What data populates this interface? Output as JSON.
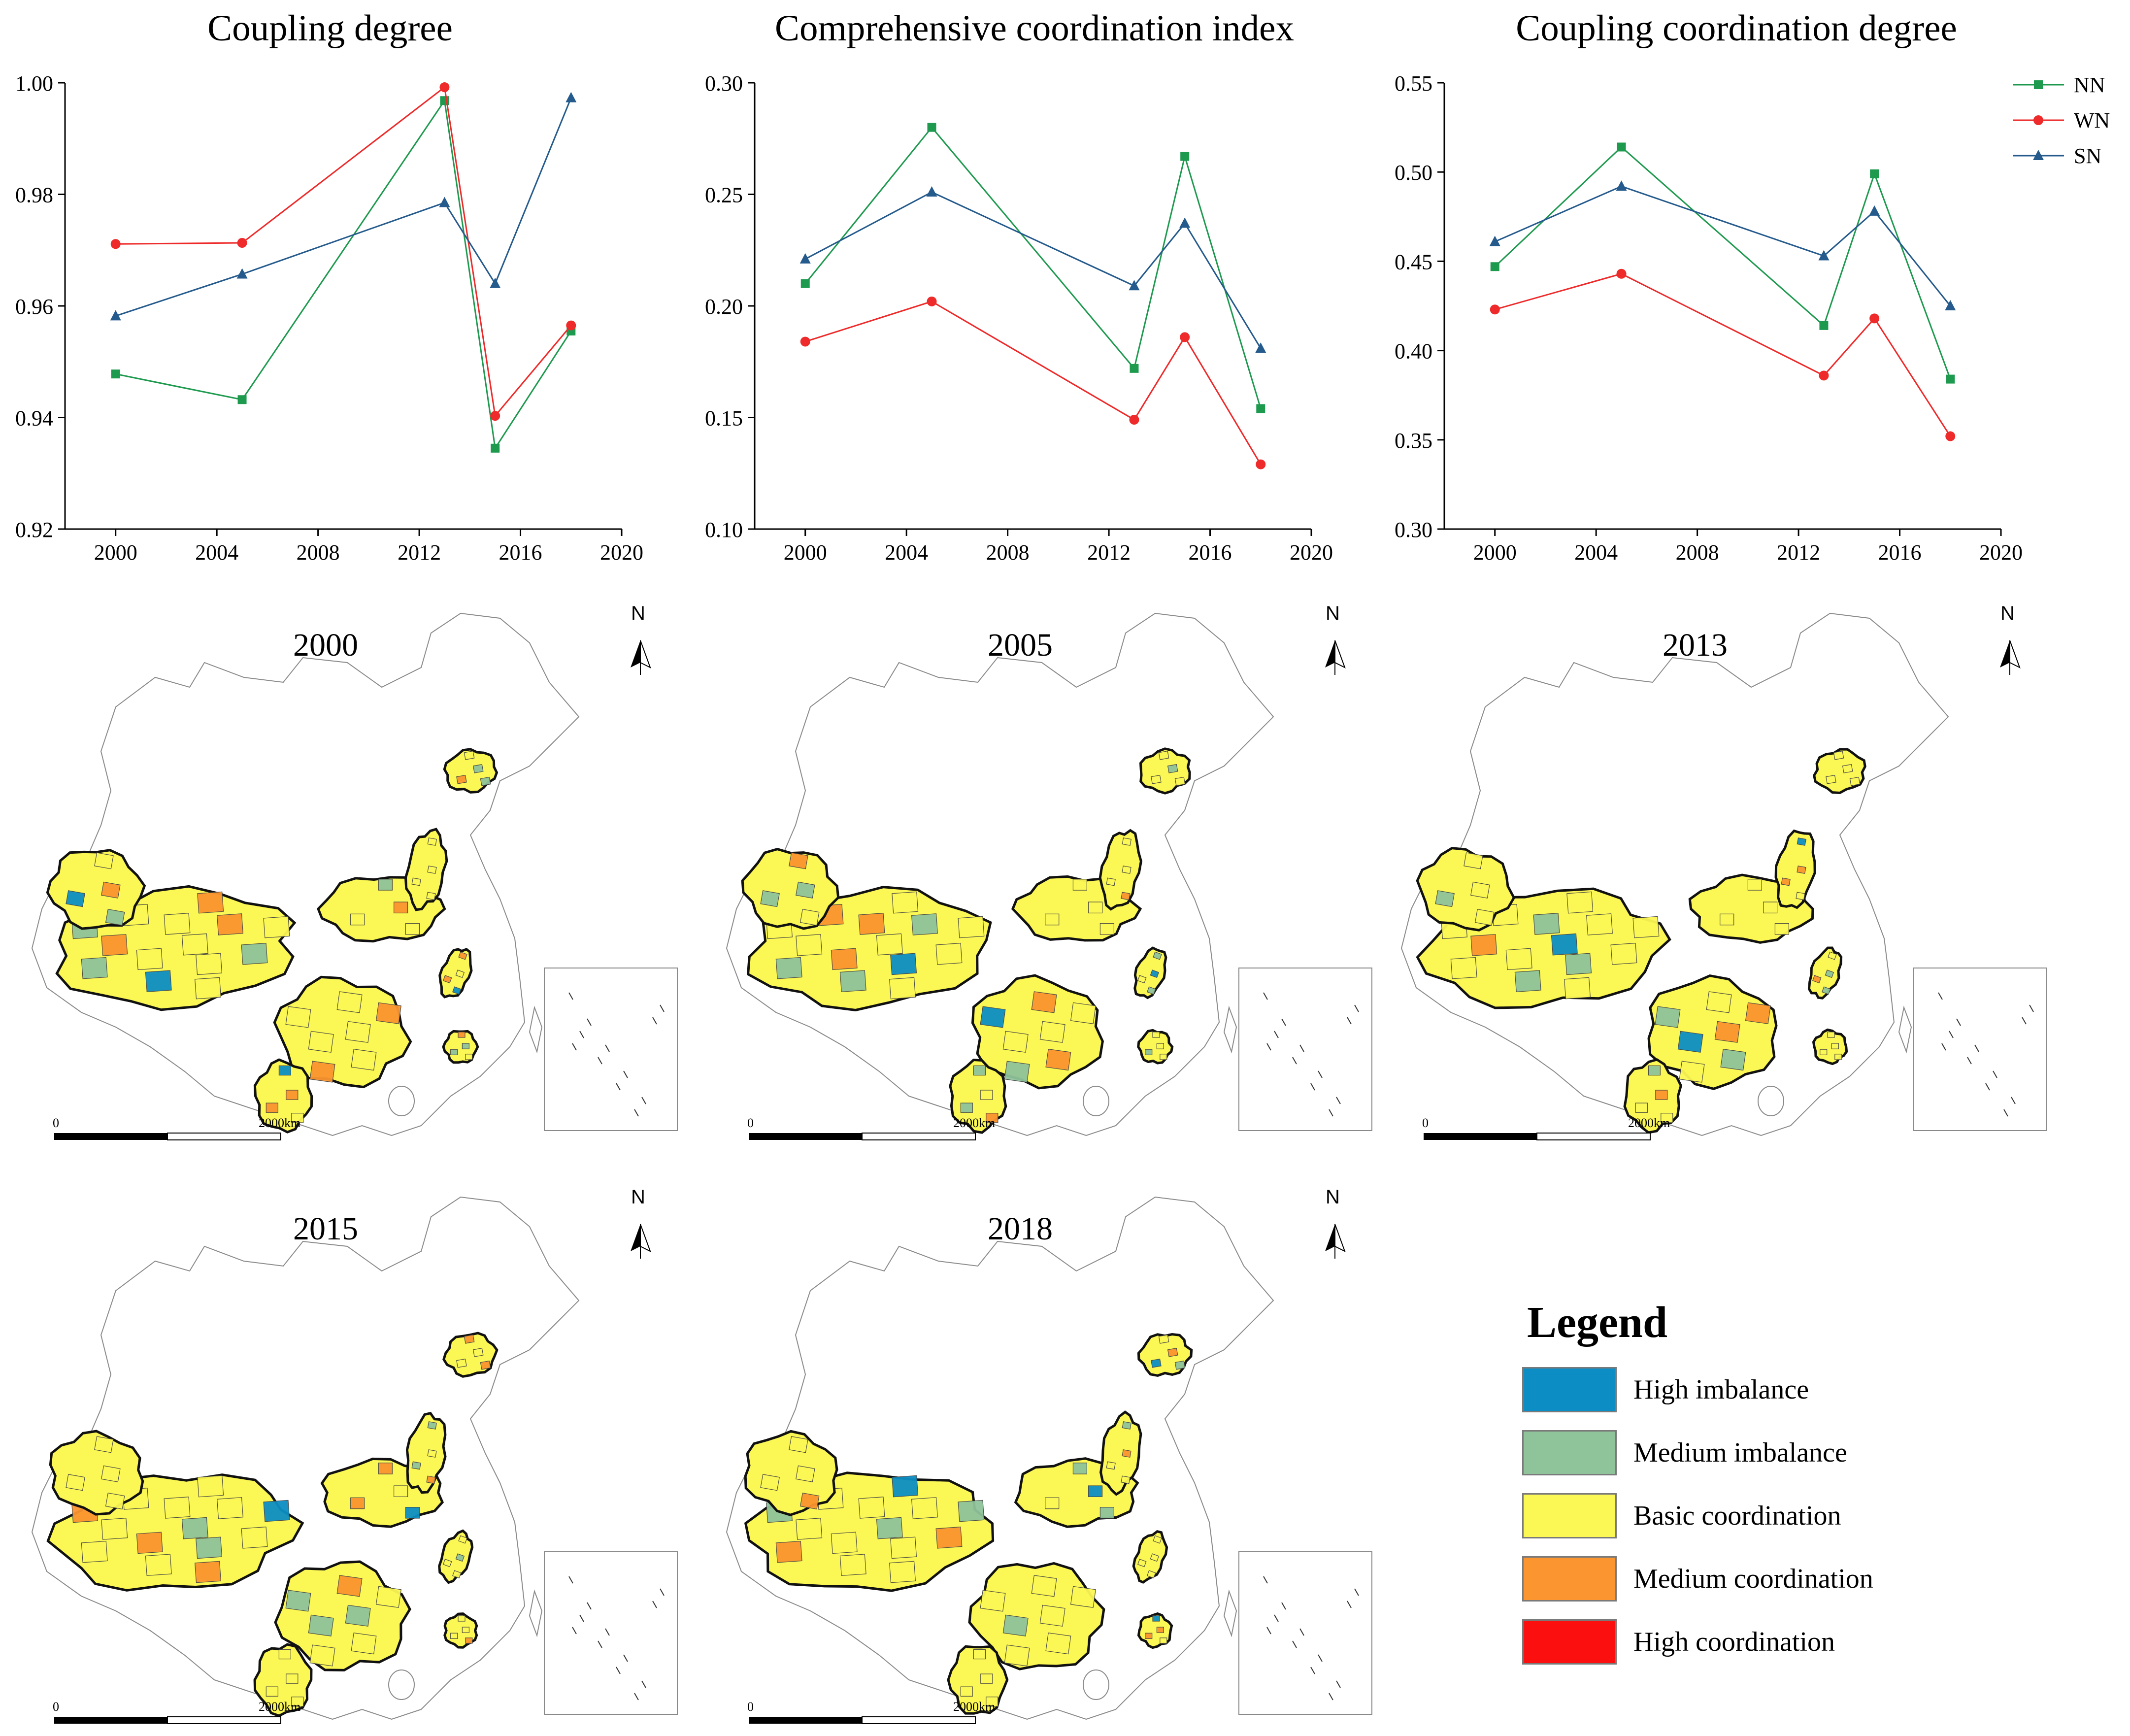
{
  "chart_data": [
    {
      "type": "line",
      "title": "Coupling degree",
      "x": [
        2000,
        2005,
        2013,
        2015,
        2018
      ],
      "xticks": [
        "2000",
        "2004",
        "2008",
        "2012",
        "2016",
        "2020"
      ],
      "xlim": [
        1998,
        2020
      ],
      "ylim": [
        0.92,
        1.0
      ],
      "yticks": [
        "0.92",
        "0.94",
        "0.96",
        "0.98",
        "1.00"
      ],
      "series": [
        {
          "name": "NN",
          "values": [
            0.9478,
            0.9432,
            0.9968,
            0.9345,
            0.9555
          ]
        },
        {
          "name": "WN",
          "values": [
            0.9711,
            0.9713,
            0.9992,
            0.9403,
            0.9565
          ]
        },
        {
          "name": "SN",
          "values": [
            0.9582,
            0.9657,
            0.9785,
            0.964,
            0.9973
          ]
        }
      ]
    },
    {
      "type": "line",
      "title": "Comprehensive coordination index",
      "x": [
        2000,
        2005,
        2013,
        2015,
        2018
      ],
      "xticks": [
        "2000",
        "2004",
        "2008",
        "2012",
        "2016",
        "2020"
      ],
      "xlim": [
        1998,
        2020
      ],
      "ylim": [
        0.1,
        0.3
      ],
      "yticks": [
        "0.10",
        "0.15",
        "0.20",
        "0.25",
        "0.30"
      ],
      "series": [
        {
          "name": "NN",
          "values": [
            0.21,
            0.28,
            0.172,
            0.267,
            0.154
          ]
        },
        {
          "name": "WN",
          "values": [
            0.184,
            0.202,
            0.149,
            0.186,
            0.129
          ]
        },
        {
          "name": "SN",
          "values": [
            0.221,
            0.251,
            0.209,
            0.237,
            0.181
          ]
        }
      ]
    },
    {
      "type": "line",
      "title": "Coupling coordination degree",
      "x": [
        2000,
        2005,
        2013,
        2015,
        2018
      ],
      "xticks": [
        "2000",
        "2004",
        "2008",
        "2012",
        "2016",
        "2020"
      ],
      "xlim": [
        1998,
        2020
      ],
      "ylim": [
        0.3,
        0.55
      ],
      "yticks": [
        "0.30",
        "0.35",
        "0.40",
        "0.45",
        "0.50",
        "0.55"
      ],
      "series": [
        {
          "name": "NN",
          "values": [
            0.447,
            0.514,
            0.414,
            0.499,
            0.384
          ]
        },
        {
          "name": "WN",
          "values": [
            0.423,
            0.443,
            0.386,
            0.418,
            0.352
          ]
        },
        {
          "name": "SN",
          "values": [
            0.461,
            0.492,
            0.453,
            0.478,
            0.425
          ]
        }
      ]
    }
  ],
  "series_legend": [
    {
      "name": "NN",
      "color": "#1e9a4f",
      "marker": "square"
    },
    {
      "name": "WN",
      "color": "#ee2a2a",
      "marker": "circle"
    },
    {
      "name": "SN",
      "color": "#245a8c",
      "marker": "triangle"
    }
  ],
  "maps": [
    {
      "year": "2000",
      "north": "N",
      "scale_start": "0",
      "scale_end": "2000km"
    },
    {
      "year": "2005",
      "north": "N",
      "scale_start": "0",
      "scale_end": "2000km"
    },
    {
      "year": "2013",
      "north": "N",
      "scale_start": "0",
      "scale_end": "2000km"
    },
    {
      "year": "2015",
      "north": "N",
      "scale_start": "0",
      "scale_end": "2000km"
    },
    {
      "year": "2018",
      "north": "N",
      "scale_start": "0",
      "scale_end": "2000km"
    }
  ],
  "map_legend": {
    "title": "Legend",
    "items": [
      {
        "label": "High imbalance",
        "color": "#0c8ec4"
      },
      {
        "label": "Medium imbalance",
        "color": "#8fc39a"
      },
      {
        "label": "Basic coordination",
        "color": "#fbf754"
      },
      {
        "label": "Medium coordination",
        "color": "#fb9530"
      },
      {
        "label": "High coordination",
        "color": "#fb0f0f"
      }
    ]
  }
}
